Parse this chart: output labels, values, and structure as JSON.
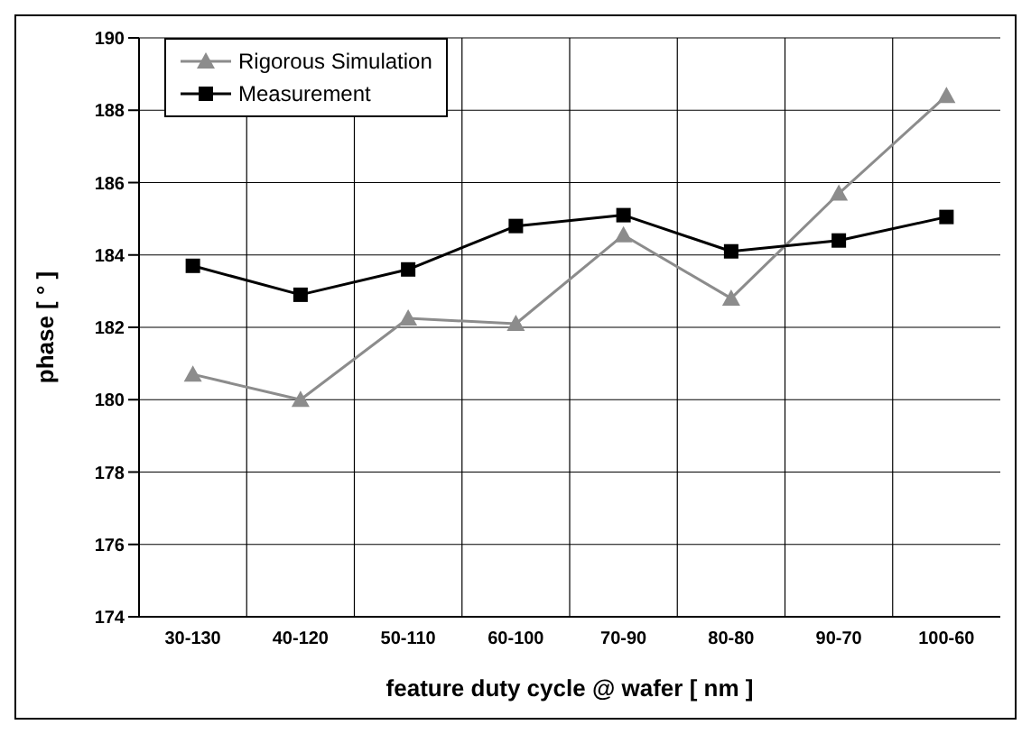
{
  "chart_data": {
    "type": "line",
    "xlabel": "feature duty cycle @ wafer [ nm ]",
    "ylabel": "phase [ ° ]",
    "categories": [
      "30-130",
      "40-120",
      "50-110",
      "60-100",
      "70-90",
      "80-80",
      "90-70",
      "100-60"
    ],
    "series": [
      {
        "name": "Rigorous Simulation",
        "color": "#8c8c8c",
        "marker": "triangle",
        "values": [
          180.7,
          180.0,
          182.25,
          182.1,
          184.55,
          182.8,
          185.7,
          188.4
        ]
      },
      {
        "name": "Measurement",
        "color": "#000000",
        "marker": "square",
        "values": [
          183.7,
          182.9,
          183.6,
          184.8,
          185.1,
          184.1,
          184.4,
          185.05
        ]
      }
    ],
    "ylim": [
      174,
      190
    ],
    "yticks": [
      174,
      176,
      178,
      180,
      182,
      184,
      186,
      188,
      190
    ],
    "grid": true,
    "legend": "top left"
  }
}
